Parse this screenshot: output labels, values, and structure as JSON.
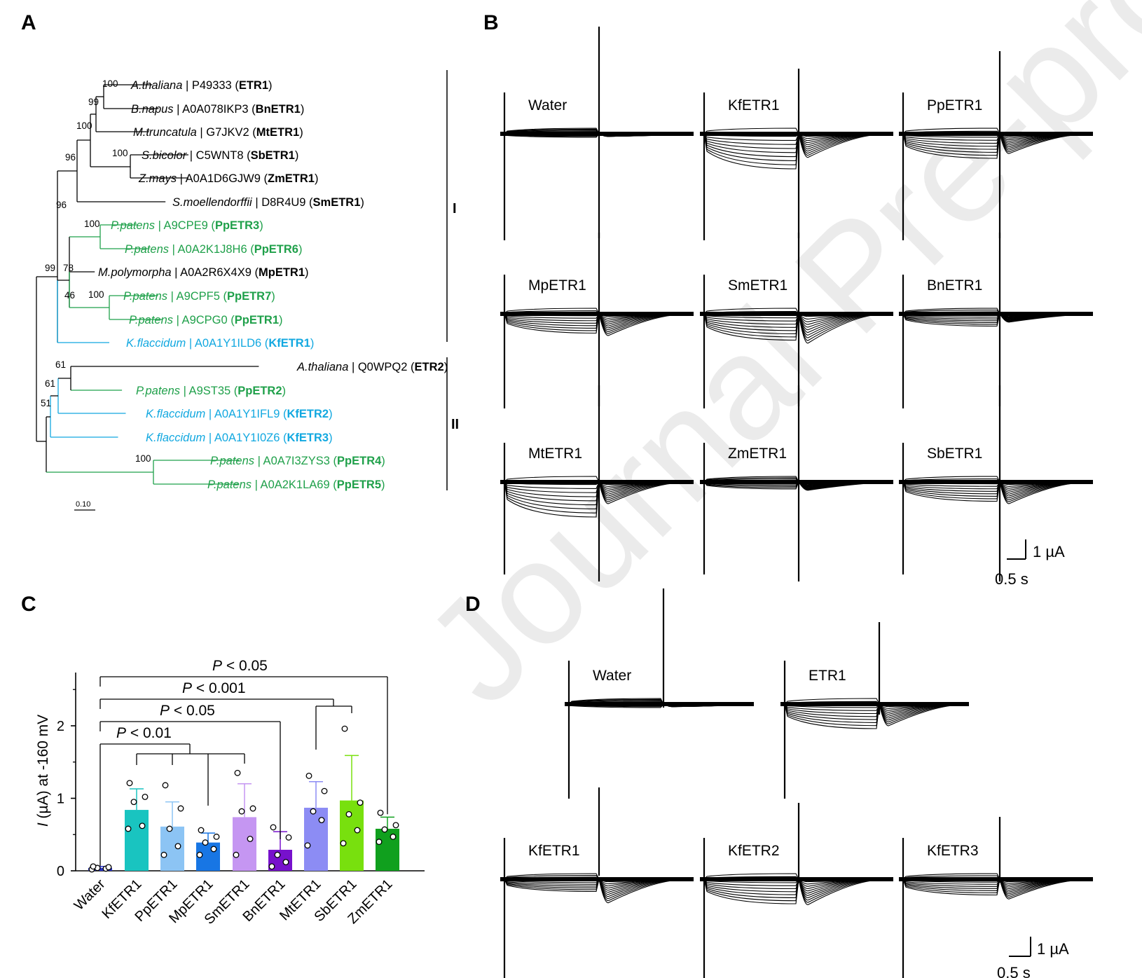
{
  "panels": {
    "a": "A",
    "b": "B",
    "c": "C",
    "d": "D"
  },
  "watermark": "Journal Pre-proof",
  "colors": {
    "moss": "#1fa04a",
    "kf": "#12a8e0",
    "black": "#000000"
  },
  "tree": {
    "scale_label": "0.10",
    "clades": [
      {
        "label": "I"
      },
      {
        "label": "II"
      }
    ],
    "leaves": [
      {
        "species": "A.thaliana",
        "acc": "P49333",
        "gene": "ETR1",
        "color": "#000000"
      },
      {
        "species": "B.napus",
        "acc": "A0A078IKP3",
        "gene": "BnETR1",
        "color": "#000000"
      },
      {
        "species": "M.truncatula",
        "acc": "G7JKV2",
        "gene": "MtETR1",
        "color": "#000000"
      },
      {
        "species": "S.bicolor",
        "acc": "C5WNT8",
        "gene": "SbETR1",
        "color": "#000000"
      },
      {
        "species": "Z.mays",
        "acc": "A0A1D6GJW9",
        "gene": "ZmETR1",
        "color": "#000000"
      },
      {
        "species": "S.moellendorffii",
        "acc": "D8R4U9",
        "gene": "SmETR1",
        "color": "#000000"
      },
      {
        "species": "P.patens",
        "acc": "A9CPE9",
        "gene": "PpETR3",
        "color": "#1fa04a"
      },
      {
        "species": "P.patens",
        "acc": "A0A2K1J8H6",
        "gene": "PpETR6",
        "color": "#1fa04a"
      },
      {
        "species": "M.polymorpha",
        "acc": "A0A2R6X4X9",
        "gene": "MpETR1",
        "color": "#000000"
      },
      {
        "species": "P.patens",
        "acc": "A9CPF5",
        "gene": "PpETR7",
        "color": "#1fa04a"
      },
      {
        "species": "P.patens",
        "acc": "A9CPG0",
        "gene": "PpETR1",
        "color": "#1fa04a"
      },
      {
        "species": "K.flaccidum",
        "acc": "A0A1Y1ILD6",
        "gene": "KfETR1",
        "color": "#12a8e0"
      },
      {
        "species": "A.thaliana",
        "acc": "Q0WPQ2",
        "gene": "ETR2",
        "color": "#000000"
      },
      {
        "species": "P.patens",
        "acc": "A9ST35",
        "gene": "PpETR2",
        "color": "#1fa04a"
      },
      {
        "species": "K.flaccidum",
        "acc": "A0A1Y1IFL9",
        "gene": "KfETR2",
        "color": "#12a8e0"
      },
      {
        "species": "K.flaccidum",
        "acc": "A0A1Y1I0Z6",
        "gene": "KfETR3",
        "color": "#12a8e0"
      },
      {
        "species": "P.patens",
        "acc": "A0A7I3ZYS3",
        "gene": "PpETR4",
        "color": "#1fa04a"
      },
      {
        "species": "P.patens",
        "acc": "A0A2K1LA69",
        "gene": "PpETR5",
        "color": "#1fa04a"
      }
    ],
    "bootstraps": [
      "100",
      "99",
      "100",
      "96",
      "100",
      "96",
      "100",
      "99",
      "78",
      "46",
      "100",
      "61",
      "61",
      "51",
      "100"
    ]
  },
  "traces_b": {
    "labels": [
      "Water",
      "KfETR1",
      "PpETR1",
      "MpETR1",
      "SmETR1",
      "BnETR1",
      "MtETR1",
      "ZmETR1",
      "SbETR1"
    ],
    "tail_amp": [
      0,
      0.55,
      0.45,
      0.5,
      0.7,
      0.15,
      0.5,
      0.15,
      0.5
    ],
    "step_amp": [
      0.1,
      1,
      0.7,
      0.55,
      0.75,
      0.35,
      1,
      0.2,
      0.55
    ],
    "scale_current": "1 µA",
    "scale_time": "0.5 s"
  },
  "traces_d": {
    "labels": [
      "Water",
      "ETR1",
      "KfETR1",
      "KfETR2",
      "KfETR3"
    ],
    "tail_amp": [
      0,
      0.5,
      0.55,
      0.6,
      0.45
    ],
    "step_amp": [
      0.1,
      0.7,
      0.35,
      0.7,
      0.45
    ],
    "scale_current": "1 µA",
    "scale_time": "0.5 s"
  },
  "chart_data": {
    "type": "bar",
    "title": "",
    "xlabel": "",
    "ylabel": "I (µA) at -160 mV",
    "ylabel_symbol": "I",
    "ylabel_rest": " (µA) at -160 mV",
    "ylim": [
      0,
      2.7
    ],
    "yticks": [
      0,
      1,
      2
    ],
    "categories": [
      "Water",
      "KfETR1",
      "PpETR1",
      "MpETR1",
      "SmETR1",
      "BnETR1",
      "MtETR1",
      "SbETR1",
      "ZmETR1"
    ],
    "values": [
      0.04,
      0.84,
      0.61,
      0.39,
      0.74,
      0.29,
      0.87,
      0.97,
      0.58
    ],
    "sd": [
      0.02,
      0.29,
      0.34,
      0.13,
      0.46,
      0.25,
      0.36,
      0.62,
      0.16
    ],
    "colors": [
      "#2b35c9",
      "#19c4c0",
      "#8cc4f4",
      "#1876e4",
      "#c596f2",
      "#7711cc",
      "#8c8cf4",
      "#78e00e",
      "#10a01e"
    ],
    "points": [
      [
        0.02,
        0.03,
        0.04,
        0.05,
        0.06
      ],
      [
        0.58,
        0.62,
        0.95,
        1.02,
        1.21
      ],
      [
        0.22,
        0.34,
        0.58,
        0.86,
        1.18
      ],
      [
        0.22,
        0.3,
        0.39,
        0.47,
        0.56
      ],
      [
        0.22,
        0.44,
        0.82,
        0.86,
        1.35
      ],
      [
        0.06,
        0.12,
        0.22,
        0.46,
        0.6
      ],
      [
        0.35,
        0.7,
        0.82,
        1.1,
        1.31
      ],
      [
        0.38,
        0.56,
        0.78,
        0.94,
        1.96
      ],
      [
        0.4,
        0.47,
        0.57,
        0.63,
        0.8
      ]
    ],
    "comparisons": [
      {
        "p": "< 0.05"
      },
      {
        "p": "< 0.001"
      },
      {
        "p": "< 0.05"
      },
      {
        "p": "< 0.01"
      }
    ]
  }
}
